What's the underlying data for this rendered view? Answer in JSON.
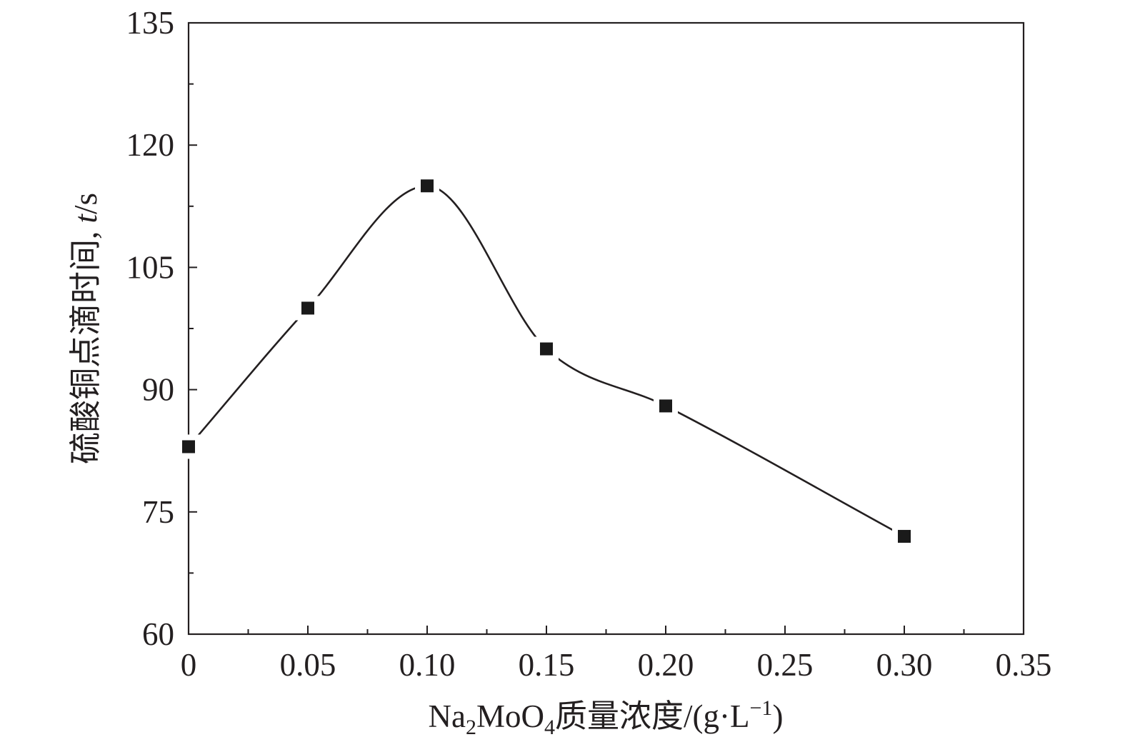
{
  "colors": {
    "line": "#231f20",
    "marker": "#1a1a1a",
    "background": "#ffffff"
  },
  "chart_data": {
    "type": "line",
    "smooth": true,
    "marker": "square",
    "x": [
      0,
      0.05,
      0.1,
      0.15,
      0.2,
      0.3
    ],
    "y": [
      83,
      100,
      115,
      95,
      88,
      72
    ],
    "xlabel": {
      "prefix": "Na",
      "sub1": "2",
      "mid": "MoO",
      "sub2": "4",
      "suffix": "质量浓度/(g·L",
      "sup": "−1",
      "end": ")"
    },
    "ylabel": {
      "main": "硫酸铜点滴时间, ",
      "italic": "t",
      "unit": "/s"
    },
    "xlim": [
      0,
      0.35
    ],
    "ylim": [
      60,
      135
    ],
    "xticks": [
      0,
      0.05,
      0.1,
      0.15,
      0.2,
      0.25,
      0.3,
      0.35
    ],
    "xtick_labels": [
      "0",
      "0.05",
      "0.10",
      "0.15",
      "0.20",
      "0.25",
      "0.30",
      "0.35"
    ],
    "xminor": [
      0.025,
      0.075,
      0.125,
      0.175,
      0.225,
      0.275,
      0.325
    ],
    "yticks": [
      60,
      75,
      90,
      105,
      120,
      135
    ],
    "ytick_labels": [
      "60",
      "75",
      "90",
      "105",
      "120",
      "135"
    ],
    "yminor": [
      67.5,
      82.5,
      97.5,
      112.5,
      127.5
    ],
    "grid": false,
    "legend": "none"
  }
}
